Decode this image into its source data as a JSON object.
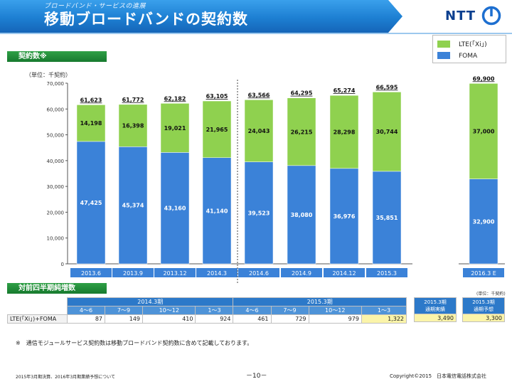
{
  "header": {
    "subtitle": "ブロードバンド・サービスの進展",
    "title": "移動ブロードバンドの契約数",
    "logo": "NTT"
  },
  "section1_label": "契約数※",
  "section2_label": "対前四半期純増数",
  "legend": [
    {
      "label": "LTE(「Xi」)",
      "color": "#8fd14f"
    },
    {
      "label": "FOMA",
      "color": "#3b82d8"
    }
  ],
  "unit_label": "（単位：千契約）",
  "chart_data": {
    "type": "bar",
    "stacked": true,
    "categories": [
      "2013.6",
      "2013.9",
      "2013.12",
      "2014.3",
      "2014.6",
      "2014.9",
      "2014.12",
      "2015.3",
      "2016.3 E"
    ],
    "series": [
      {
        "name": "FOMA",
        "color": "#3b82d8",
        "values": [
          47425,
          45374,
          43160,
          41140,
          39523,
          38080,
          36976,
          35851,
          32900
        ],
        "labels": [
          "47,425",
          "45,374",
          "43,160",
          "41,140",
          "39,523",
          "38,080",
          "36,976",
          "35,851",
          "32,900"
        ]
      },
      {
        "name": "LTE(「Xi」)",
        "color": "#8fd14f",
        "values": [
          14198,
          16398,
          19021,
          21965,
          24043,
          26215,
          28298,
          30744,
          37000
        ],
        "labels": [
          "14,198",
          "16,398",
          "19,021",
          "21,965",
          "24,043",
          "26,215",
          "28,298",
          "30,744",
          "37,000"
        ]
      }
    ],
    "totals": [
      61623,
      61772,
      62182,
      63105,
      63566,
      64295,
      65274,
      66595,
      69900
    ],
    "total_labels": [
      "61,623",
      "61,772",
      "62,182",
      "63,105",
      "63,566",
      "64,295",
      "65,274",
      "66,595",
      "69,900"
    ],
    "yticks": [
      "0",
      "10,000",
      "20,000",
      "30,000",
      "40,000",
      "50,000",
      "60,000",
      "70,000"
    ],
    "ylim": [
      0,
      70000
    ],
    "grid": false
  },
  "table": {
    "unit_note": "(単位：千契約)",
    "period_2014": "2014.3期",
    "period_2015": "2015.3期",
    "col_2015_actual": "2015.3期\n通期実績",
    "col_2016_forecast": "2015.3期\n通期予想",
    "quarters": [
      "4～6",
      "7～9",
      "10～12",
      "1～3",
      "4～6",
      "7～9",
      "10～12",
      "1～3"
    ],
    "row_label": "LTE(「Xi」)+FOMA",
    "values": [
      "87",
      "149",
      "410",
      "924",
      "461",
      "729",
      "979",
      "1,322"
    ],
    "actual": "3,490",
    "forecast": "3,300"
  },
  "footnote": "※　通信モジュールサービス契約数は移動ブロードバンド契約数に含めて記載しております。",
  "footer": {
    "left": "2015年3月期決算、2016年3月期業績予想について",
    "page": "－10－",
    "copyright": "Copyright©2015　日本電信電話株式会社"
  }
}
